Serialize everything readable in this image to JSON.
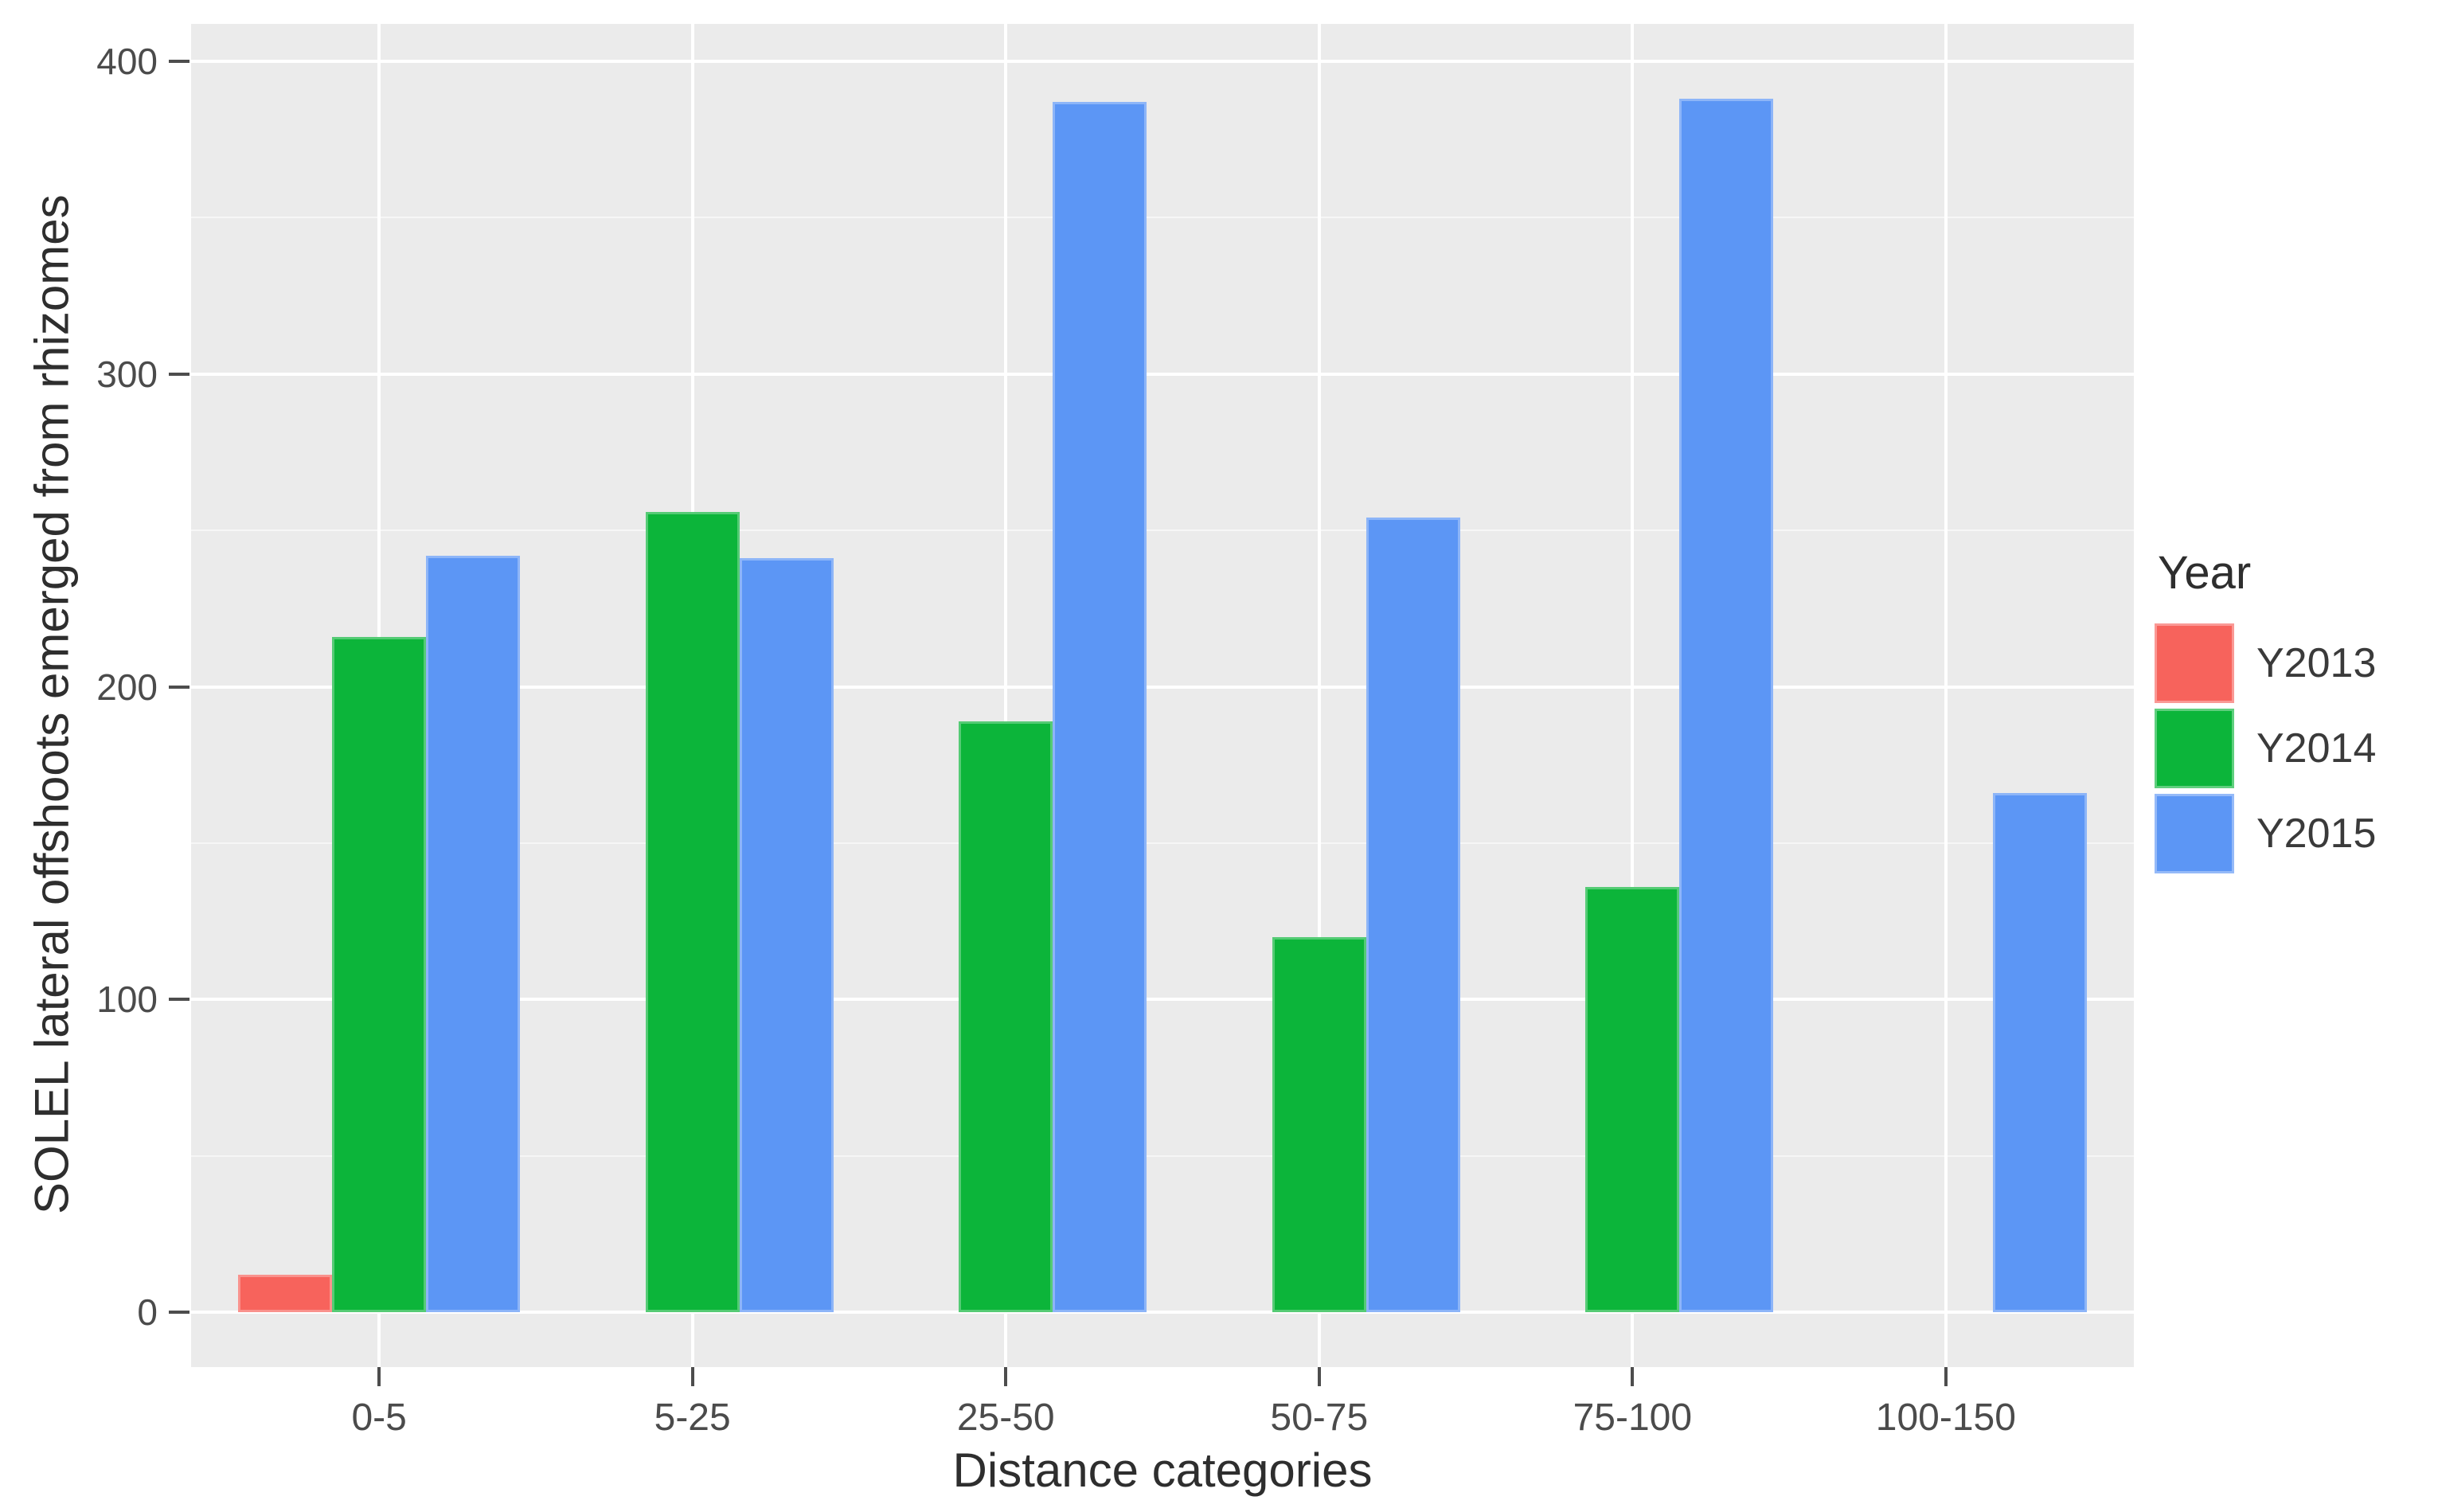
{
  "chart_data": {
    "type": "bar",
    "title": "",
    "xlabel": "Distance categories",
    "ylabel": "SOLEL lateral offshoots emerged from rhizomes",
    "categories": [
      "0-5",
      "5-25",
      "25-50",
      "50-75",
      "75-100",
      "100-150"
    ],
    "series": [
      {
        "name": "Y2013",
        "color": "#F7635C",
        "values": [
          12,
          null,
          null,
          null,
          null,
          null
        ]
      },
      {
        "name": "Y2014",
        "color": "#0CB53A",
        "values": [
          216,
          256,
          189,
          120,
          136,
          null
        ]
      },
      {
        "name": "Y2015",
        "color": "#5C96F5",
        "values": [
          242,
          241,
          387,
          254,
          388,
          166
        ]
      }
    ],
    "ylim": [
      0,
      400
    ],
    "yticks": [
      0,
      100,
      200,
      300,
      400
    ],
    "yminor": [
      50,
      150,
      250,
      350
    ],
    "grid": true,
    "legend_title": "Year",
    "legend_position": "right",
    "panel_background": "#EBEBEB",
    "grid_major_color": "#FFFFFF"
  }
}
